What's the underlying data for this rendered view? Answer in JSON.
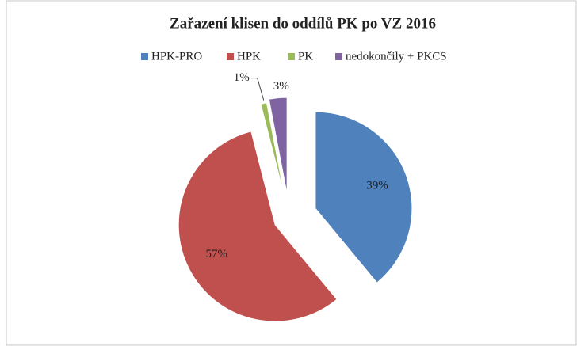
{
  "chart_data": {
    "type": "pie",
    "title": "Zařazení klisen do oddílů PK po VZ 2016",
    "categories": [
      "HPK-PRO",
      "HPK",
      "PK",
      "nedokončily + PKCS"
    ],
    "values": [
      39,
      57,
      1,
      3
    ],
    "value_labels": [
      "39%",
      "57%",
      "1%",
      "3%"
    ],
    "colors": [
      "#4f81bd",
      "#c0504d",
      "#9bbb59",
      "#8064a2"
    ],
    "legend": "top"
  }
}
